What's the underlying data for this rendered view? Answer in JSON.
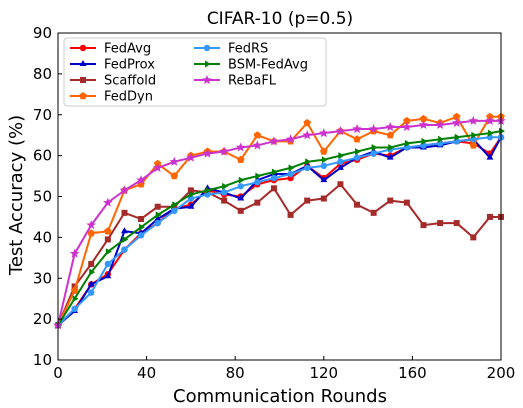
{
  "chart_data": {
    "type": "line",
    "title": "CIFAR-10 (p=0.5)",
    "xlabel": "Communication Rounds",
    "ylabel": "Test Accuracy (%)",
    "xlim": [
      0,
      200
    ],
    "ylim": [
      10,
      90
    ],
    "xticks": [
      "0",
      "40",
      "80",
      "120",
      "160",
      "200"
    ],
    "yticks": [
      "10",
      "20",
      "30",
      "40",
      "50",
      "60",
      "70",
      "80",
      "90"
    ],
    "grid": false,
    "legend": "top-left",
    "x": [
      0,
      7.5,
      15,
      22.5,
      30,
      37.5,
      45,
      52.5,
      60,
      67.5,
      75,
      82.5,
      90,
      97.5,
      105,
      112.5,
      120,
      127.5,
      135,
      142.5,
      150,
      157.5,
      165,
      172.5,
      180,
      187.5,
      195,
      200
    ],
    "series": [
      {
        "name": "FedAvg",
        "color": "#ff0000",
        "marker": "circle",
        "values": [
          18.5,
          22.5,
          28.5,
          31.0,
          37.0,
          41.0,
          43.5,
          47.0,
          48.0,
          51.5,
          50.5,
          50.0,
          53.0,
          54.0,
          54.5,
          57.5,
          54.5,
          58.0,
          59.0,
          60.5,
          60.0,
          62.0,
          62.5,
          63.0,
          63.5,
          63.0,
          60.5,
          64.5
        ]
      },
      {
        "name": "FedProx",
        "color": "#0000cc",
        "marker": "triangle",
        "values": [
          18.5,
          22.0,
          28.5,
          30.5,
          41.5,
          41.0,
          44.5,
          47.0,
          47.5,
          52.0,
          51.0,
          49.5,
          54.0,
          55.5,
          55.5,
          57.5,
          54.0,
          57.0,
          59.5,
          61.0,
          59.5,
          62.0,
          62.0,
          62.5,
          63.5,
          64.0,
          59.5,
          64.5
        ]
      },
      {
        "name": "Scaffold",
        "color": "#a52a2a",
        "marker": "square",
        "values": [
          18.5,
          28.0,
          33.5,
          39.5,
          46.0,
          44.5,
          47.5,
          47.5,
          51.5,
          51.0,
          49.0,
          46.5,
          48.5,
          52.0,
          45.5,
          49.0,
          49.5,
          53.0,
          48.0,
          46.0,
          49.0,
          48.5,
          43.0,
          43.5,
          43.5,
          40.0,
          45.0,
          45.0
        ]
      },
      {
        "name": "FedDyn",
        "color": "#ff6600",
        "marker": "pentagon",
        "values": [
          18.5,
          27.0,
          41.0,
          41.5,
          51.5,
          53.0,
          58.0,
          55.0,
          60.0,
          61.0,
          61.0,
          59.0,
          65.0,
          63.5,
          63.5,
          68.0,
          61.0,
          66.0,
          64.0,
          66.0,
          65.0,
          68.5,
          69.0,
          68.0,
          69.5,
          62.5,
          69.5,
          69.5
        ]
      },
      {
        "name": "FedRS",
        "color": "#3399ff",
        "marker": "circle",
        "values": [
          18.5,
          22.5,
          26.5,
          33.5,
          37.0,
          40.5,
          43.5,
          46.5,
          49.5,
          50.5,
          51.0,
          52.5,
          53.5,
          54.5,
          55.5,
          57.0,
          57.5,
          58.5,
          59.5,
          60.5,
          61.5,
          62.0,
          62.5,
          63.0,
          63.5,
          64.0,
          64.5,
          64.5
        ]
      },
      {
        "name": "BSM-FedAvg",
        "color": "#008000",
        "marker": "triangle-right",
        "values": [
          18.5,
          25.0,
          31.5,
          36.5,
          39.5,
          42.5,
          45.5,
          48.0,
          50.5,
          51.5,
          52.5,
          54.0,
          55.0,
          56.0,
          57.0,
          58.5,
          59.0,
          60.0,
          61.0,
          62.0,
          62.0,
          63.0,
          63.5,
          64.0,
          64.5,
          65.0,
          65.5,
          66.0
        ]
      },
      {
        "name": "ReBaFL",
        "color": "#cc33cc",
        "marker": "star",
        "values": [
          18.5,
          36.0,
          43.0,
          48.5,
          51.5,
          54.0,
          57.0,
          58.5,
          59.5,
          60.5,
          61.0,
          62.0,
          62.5,
          63.5,
          64.0,
          65.0,
          65.5,
          66.0,
          66.5,
          66.5,
          67.0,
          67.0,
          67.5,
          67.5,
          68.0,
          68.5,
          68.5,
          68.5
        ]
      }
    ]
  }
}
